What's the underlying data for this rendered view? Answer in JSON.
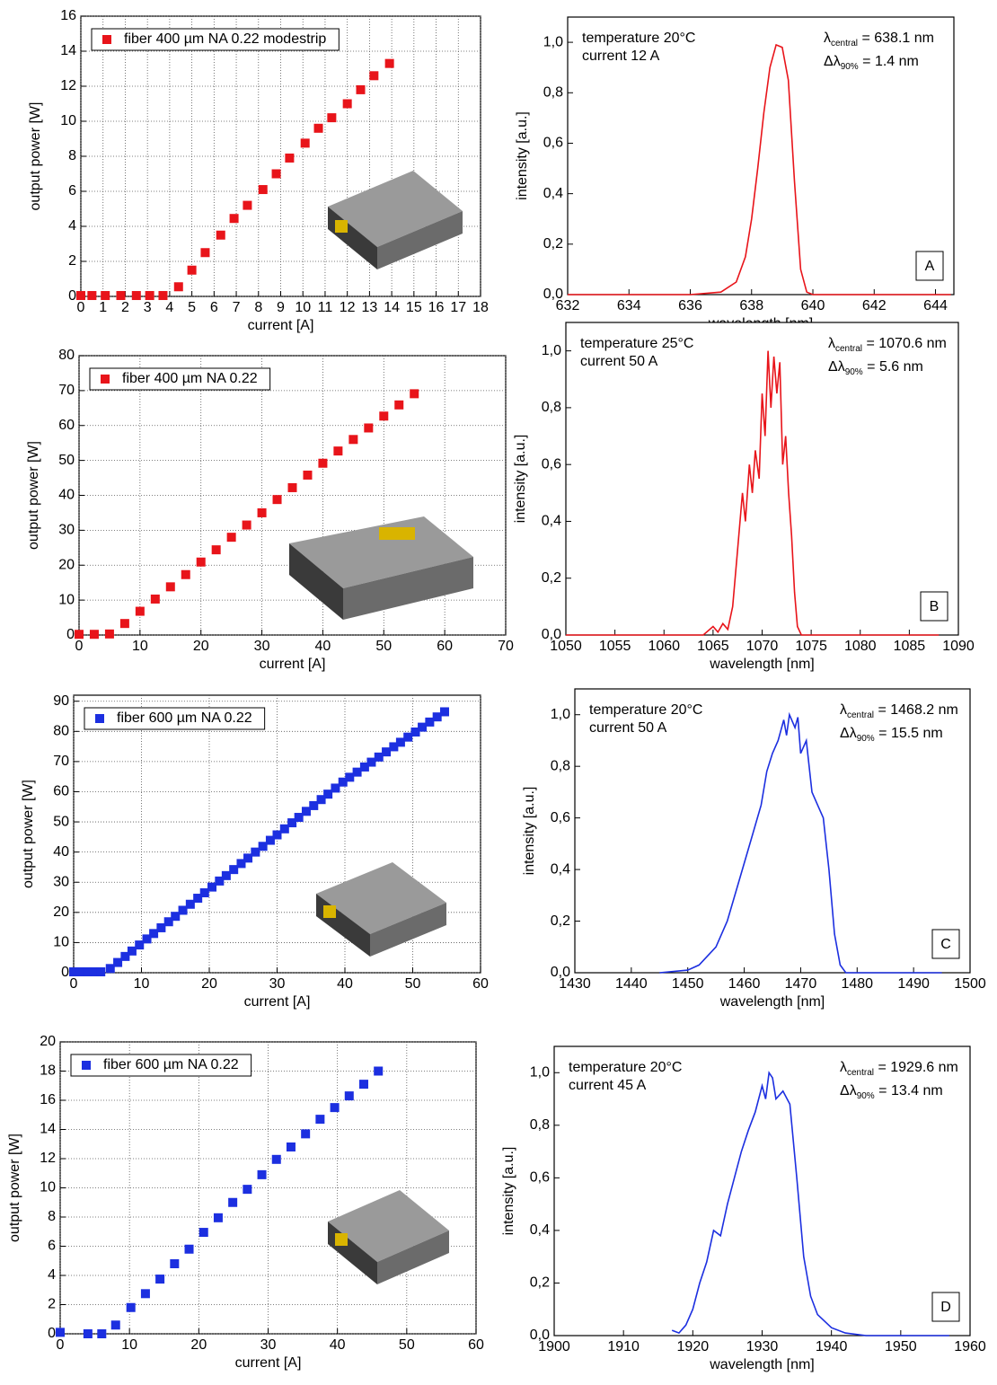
{
  "chart_data": [
    {
      "type": "scatter",
      "xlabel": "current [A]",
      "ylabel": "output power [W]",
      "x": [
        0,
        0.5,
        1.1,
        1.8,
        2.5,
        3.1,
        3.7,
        4.4,
        5.0,
        5.6,
        6.3,
        6.9,
        7.5,
        8.2,
        8.8,
        9.4,
        10.1,
        10.7,
        11.3,
        12.0,
        12.6,
        13.2,
        13.9
      ],
      "series": [
        {
          "name": "fiber 400 µm NA 0.22 modestrip",
          "color": "#e8141a",
          "values": [
            0.05,
            0.05,
            0.05,
            0.05,
            0.05,
            0.05,
            0.05,
            0.55,
            1.5,
            2.5,
            3.5,
            4.45,
            5.2,
            6.1,
            7.0,
            7.9,
            8.75,
            9.6,
            10.2,
            11.0,
            11.8,
            12.6,
            13.3
          ]
        }
      ],
      "xlim": [
        0,
        18
      ],
      "ylim": [
        0,
        16
      ],
      "xticks": [
        0,
        1,
        2,
        3,
        4,
        5,
        6,
        7,
        8,
        9,
        10,
        11,
        12,
        13,
        14,
        15,
        16,
        17,
        18
      ],
      "yticks": [
        0,
        2,
        4,
        6,
        8,
        10,
        12,
        14,
        16
      ],
      "grid": true,
      "legend": "upper left"
    },
    {
      "type": "line",
      "xlabel": "wavelength [nm]",
      "ylabel": "intensity [a.u.]",
      "color": "#e8141a",
      "x": [
        632,
        636,
        637,
        637.5,
        637.8,
        638,
        638.2,
        638.4,
        638.6,
        638.8,
        639.0,
        639.2,
        639.4,
        639.6,
        639.8,
        640,
        644.5
      ],
      "values": [
        0,
        0,
        0.01,
        0.05,
        0.15,
        0.3,
        0.5,
        0.72,
        0.9,
        0.99,
        0.98,
        0.85,
        0.45,
        0.1,
        0.01,
        0,
        0
      ],
      "xlim": [
        632,
        644.6
      ],
      "ylim": [
        0,
        1.1
      ],
      "xticks": [
        632,
        634,
        636,
        638,
        640,
        642,
        644
      ],
      "yticks": [
        {
          "value": 0,
          "label": "0,0"
        },
        {
          "value": 0.2,
          "label": "0,2"
        },
        {
          "value": 0.4,
          "label": "0,4"
        },
        {
          "value": 0.6,
          "label": "0,6"
        },
        {
          "value": 0.8,
          "label": "0,8"
        },
        {
          "value": 1,
          "label": "1,0"
        }
      ],
      "grid": false,
      "annotations": {
        "temperature": "temperature 20°C",
        "current": "current 12 A",
        "central": {
          "symbol": "λ",
          "subscript": "central",
          "text": " = 638.1 nm"
        },
        "width": {
          "symbol": "Δλ",
          "subscript": "90%",
          "text": " = 1.4 nm"
        },
        "panel": "A"
      }
    },
    {
      "type": "scatter",
      "xlabel": "current [A]",
      "ylabel": "output power [W]",
      "x": [
        0,
        2.5,
        5,
        7.5,
        10,
        12.5,
        15,
        17.5,
        20,
        22.5,
        25,
        27.5,
        30,
        32.5,
        35,
        37.5,
        40,
        42.5,
        45,
        47.5,
        50,
        52.5,
        55
      ],
      "series": [
        {
          "name": "fiber 400 µm NA 0.22",
          "color": "#e8141a",
          "values": [
            0.2,
            0.2,
            0.3,
            3.3,
            6.8,
            10.3,
            13.8,
            17.3,
            20.9,
            24.4,
            28,
            31.5,
            35,
            38.8,
            42.2,
            45.8,
            49.2,
            52.7,
            56,
            59.3,
            62.7,
            65.9,
            69.1
          ]
        }
      ],
      "xlim": [
        0,
        70
      ],
      "ylim": [
        0,
        80
      ],
      "xticks": [
        0,
        10,
        20,
        30,
        40,
        50,
        60,
        70
      ],
      "yticks": [
        0,
        10,
        20,
        30,
        40,
        50,
        60,
        70,
        80
      ],
      "grid": true,
      "legend": "upper left"
    },
    {
      "type": "line",
      "xlabel": "wavelength [nm]",
      "ylabel": "intensity [a.u.]",
      "color": "#e8141a",
      "x": [
        1050,
        1064,
        1065,
        1065.5,
        1066,
        1066.5,
        1067,
        1067.5,
        1068,
        1068.3,
        1068.7,
        1069,
        1069.3,
        1069.7,
        1070,
        1070.3,
        1070.6,
        1070.9,
        1071.2,
        1071.5,
        1071.8,
        1072.1,
        1072.4,
        1072.7,
        1073,
        1073.3,
        1073.6,
        1074,
        1088
      ],
      "values": [
        0,
        0,
        0.03,
        0.01,
        0.04,
        0.02,
        0.1,
        0.3,
        0.5,
        0.4,
        0.6,
        0.5,
        0.65,
        0.55,
        0.85,
        0.7,
        1.0,
        0.8,
        0.98,
        0.85,
        0.96,
        0.6,
        0.7,
        0.5,
        0.35,
        0.15,
        0.03,
        0,
        0
      ],
      "xlim": [
        1050,
        1090
      ],
      "ylim": [
        0,
        1.1
      ],
      "xticks": [
        1050,
        1055,
        1060,
        1065,
        1070,
        1075,
        1080,
        1085,
        1090
      ],
      "yticks": [
        {
          "value": 0,
          "label": "0,0"
        },
        {
          "value": 0.2,
          "label": "0,2"
        },
        {
          "value": 0.4,
          "label": "0,4"
        },
        {
          "value": 0.6,
          "label": "0,6"
        },
        {
          "value": 0.8,
          "label": "0,8"
        },
        {
          "value": 1,
          "label": "1,0"
        }
      ],
      "grid": false,
      "annotations": {
        "temperature": "temperature 25°C",
        "current": "current 50 A",
        "central": {
          "symbol": "λ",
          "subscript": "central",
          "text": " = 1070.6 nm"
        },
        "width": {
          "symbol": "Δλ",
          "subscript": "90%",
          "text": " = 5.6 nm"
        },
        "panel": "B"
      }
    },
    {
      "type": "scatter",
      "xlabel": "current [A]",
      "ylabel": "output power [W]",
      "x": [
        0,
        1,
        2,
        3,
        4,
        5.4,
        6.5,
        7.6,
        8.6,
        9.7,
        10.8,
        11.8,
        12.9,
        14,
        15,
        16.1,
        17.2,
        18.3,
        19.3,
        20.4,
        21.5,
        22.5,
        23.6,
        24.7,
        25.7,
        26.8,
        27.9,
        29,
        30,
        31.1,
        32.2,
        33.2,
        34.3,
        35.4,
        36.5,
        37.5,
        38.6,
        39.7,
        40.7,
        41.8,
        42.9,
        43.9,
        45,
        46.1,
        47.2,
        48.2,
        49.3,
        50.4,
        51.4,
        52.5,
        53.6,
        54.7
      ],
      "series": [
        {
          "name": "fiber 600 µm NA 0.22",
          "color": "#1c2fe0",
          "values": [
            0.3,
            0.3,
            0.3,
            0.3,
            0.3,
            1.4,
            3.4,
            5.4,
            7.2,
            9.2,
            11.2,
            13.0,
            14.9,
            16.9,
            18.7,
            20.7,
            22.7,
            24.7,
            26.5,
            28.4,
            30.4,
            32.2,
            34.2,
            36.2,
            38.0,
            40.0,
            41.9,
            43.9,
            45.7,
            47.7,
            49.7,
            51.5,
            53.5,
            55.4,
            57.4,
            59.2,
            61.2,
            63.2,
            64.8,
            66.5,
            68.2,
            69.8,
            71.5,
            73.2,
            74.9,
            76.4,
            78.1,
            79.8,
            81.4,
            83.1,
            84.8,
            86.5
          ]
        }
      ],
      "xlim": [
        0,
        60
      ],
      "ylim": [
        0,
        92
      ],
      "xticks": [
        0,
        10,
        20,
        30,
        40,
        50,
        60
      ],
      "yticks": [
        0,
        10,
        20,
        30,
        40,
        50,
        60,
        70,
        80,
        90
      ],
      "grid": true,
      "legend": "upper left"
    },
    {
      "type": "line",
      "xlabel": "wavelength [nm]",
      "ylabel": "intensity [a.u.]",
      "color": "#1c2fe0",
      "x": [
        1445,
        1450,
        1452,
        1455,
        1457,
        1459,
        1461,
        1463,
        1464,
        1465,
        1466,
        1467,
        1467.5,
        1468,
        1469,
        1469.5,
        1470,
        1471,
        1472,
        1473,
        1474,
        1475,
        1476,
        1477,
        1478,
        1495
      ],
      "values": [
        0,
        0.01,
        0.03,
        0.1,
        0.2,
        0.35,
        0.5,
        0.65,
        0.78,
        0.85,
        0.9,
        0.98,
        0.92,
        1.0,
        0.95,
        0.99,
        0.85,
        0.9,
        0.7,
        0.65,
        0.6,
        0.4,
        0.15,
        0.03,
        0,
        0
      ],
      "xlim": [
        1430,
        1500
      ],
      "ylim": [
        0,
        1.1
      ],
      "xticks": [
        1430,
        1440,
        1450,
        1460,
        1470,
        1480,
        1490,
        1500
      ],
      "yticks": [
        {
          "value": 0,
          "label": "0,0"
        },
        {
          "value": 0.2,
          "label": "0,2"
        },
        {
          "value": 0.4,
          "label": "0,4"
        },
        {
          "value": 0.6,
          "label": "0,6"
        },
        {
          "value": 0.8,
          "label": "0,8"
        },
        {
          "value": 1,
          "label": "1,0"
        }
      ],
      "grid": false,
      "annotations": {
        "temperature": "temperature 20°C",
        "current": "current 50 A",
        "central": {
          "symbol": "λ",
          "subscript": "central",
          "text": " = 1468.2 nm"
        },
        "width": {
          "symbol": "Δλ",
          "subscript": "90%",
          "text": " = 15.5 nm"
        },
        "panel": "C"
      }
    },
    {
      "type": "scatter",
      "xlabel": "current [A]",
      "ylabel": "output power [W]",
      "x": [
        0,
        4,
        6,
        8,
        10.2,
        12.3,
        14.4,
        16.5,
        18.6,
        20.7,
        22.8,
        24.9,
        27,
        29.1,
        31.2,
        33.3,
        35.4,
        37.5,
        39.6,
        41.7,
        43.8,
        45.9
      ],
      "series": [
        {
          "name": "fiber 600 µm NA 0.22",
          "color": "#1c2fe0",
          "values": [
            0.1,
            0,
            0,
            0.6,
            1.8,
            2.75,
            3.75,
            4.8,
            5.8,
            6.95,
            7.95,
            9.0,
            9.9,
            10.9,
            11.95,
            12.8,
            13.7,
            14.7,
            15.5,
            16.3,
            17.1,
            18.0
          ]
        }
      ],
      "xlim": [
        0,
        60
      ],
      "ylim": [
        0,
        20
      ],
      "xticks": [
        0,
        10,
        20,
        30,
        40,
        50,
        60
      ],
      "yticks": [
        0,
        2,
        4,
        6,
        8,
        10,
        12,
        14,
        16,
        18,
        20
      ],
      "grid": true,
      "legend": "upper left"
    },
    {
      "type": "line",
      "xlabel": "wavelength [nm]",
      "ylabel": "intensity [a.u.]",
      "color": "#1c2fe0",
      "x": [
        1917,
        1918,
        1919,
        1920,
        1921,
        1922,
        1923,
        1924,
        1925,
        1926,
        1927,
        1928,
        1929,
        1930,
        1930.5,
        1931,
        1931.5,
        1932,
        1933,
        1934,
        1935,
        1936,
        1937,
        1938,
        1940,
        1942,
        1945,
        1957
      ],
      "values": [
        0.02,
        0.01,
        0.04,
        0.1,
        0.2,
        0.28,
        0.4,
        0.38,
        0.5,
        0.6,
        0.7,
        0.78,
        0.85,
        0.95,
        0.9,
        1.0,
        0.98,
        0.9,
        0.93,
        0.88,
        0.6,
        0.3,
        0.15,
        0.08,
        0.03,
        0.01,
        0,
        0
      ],
      "xlim": [
        1900,
        1960
      ],
      "ylim": [
        0,
        1.1
      ],
      "xticks": [
        1900,
        1910,
        1920,
        1930,
        1940,
        1950,
        1960
      ],
      "yticks": [
        {
          "value": 0,
          "label": "0,0"
        },
        {
          "value": 0.2,
          "label": "0,2"
        },
        {
          "value": 0.4,
          "label": "0,4"
        },
        {
          "value": 0.6,
          "label": "0,6"
        },
        {
          "value": 0.8,
          "label": "0,8"
        },
        {
          "value": 1,
          "label": "1,0"
        }
      ],
      "grid": false,
      "annotations": {
        "temperature": "temperature 20°C",
        "current": "current 45 A",
        "central": {
          "symbol": "λ",
          "subscript": "central",
          "text": " = 1929.6 nm"
        },
        "width": {
          "symbol": "Δλ",
          "subscript": "90%",
          "text": " = 13.4 nm"
        },
        "panel": "D"
      }
    }
  ]
}
